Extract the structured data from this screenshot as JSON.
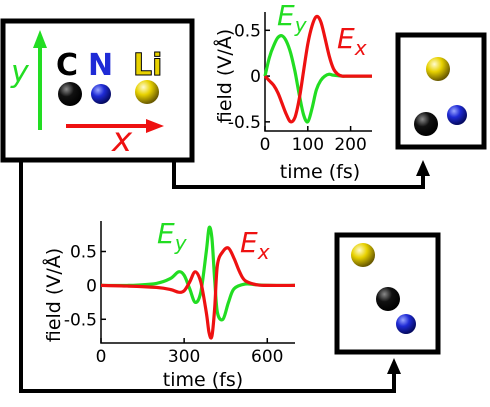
{
  "colors": {
    "green": "#22dd22",
    "red": "#ee1111",
    "black": "#000000",
    "carbon": "#111111",
    "nitrogen": "#1f2bd6",
    "lithium": "#e8d200"
  },
  "legend": {
    "y_label": "y",
    "x_label": "x",
    "atoms": [
      "C",
      "N",
      "Li"
    ]
  },
  "chart_data": [
    {
      "type": "line",
      "id": "top",
      "xlabel": "time (fs)",
      "ylabel": "field (V/Å)",
      "xlim": [
        0,
        250
      ],
      "ylim": [
        -0.6,
        0.7
      ],
      "xticks": [
        0,
        100,
        200
      ],
      "yticks": [
        0.5,
        0,
        -0.5
      ],
      "ytick_labels": [
        "0.5",
        "0",
        "-0.5"
      ],
      "series": [
        {
          "name": "Ey",
          "color": "#22dd22",
          "x": [
            0,
            10,
            20,
            30,
            40,
            50,
            60,
            70,
            80,
            90,
            100,
            110,
            120,
            130,
            140,
            150,
            160,
            180,
            200,
            250
          ],
          "y": [
            0,
            0.2,
            0.33,
            0.42,
            0.44,
            0.38,
            0.25,
            0.05,
            -0.2,
            -0.42,
            -0.5,
            -0.35,
            -0.15,
            -0.05,
            0,
            0.02,
            0.01,
            0,
            0,
            0
          ]
        },
        {
          "name": "Ex",
          "color": "#ee1111",
          "x": [
            0,
            10,
            20,
            30,
            40,
            50,
            60,
            70,
            80,
            90,
            100,
            110,
            120,
            130,
            140,
            150,
            160,
            170,
            180,
            190,
            200,
            220,
            250
          ],
          "y": [
            0,
            -0.05,
            -0.1,
            -0.18,
            -0.3,
            -0.42,
            -0.5,
            -0.45,
            -0.25,
            0.05,
            0.35,
            0.55,
            0.65,
            0.6,
            0.42,
            0.22,
            0.08,
            0.02,
            0,
            0,
            0,
            0,
            0
          ]
        }
      ],
      "legend_labels": [
        "Ey",
        "Ex"
      ]
    },
    {
      "type": "line",
      "id": "bottom",
      "xlabel": "time (fs)",
      "ylabel": "field (V/Å)",
      "xlim": [
        0,
        700
      ],
      "ylim": [
        -0.85,
        0.95
      ],
      "xticks": [
        0,
        300,
        600
      ],
      "yticks": [
        0.5,
        0,
        -0.5
      ],
      "ytick_labels": [
        "0.5",
        "0",
        "-0.5"
      ],
      "series": [
        {
          "name": "Ey",
          "color": "#22dd22",
          "x": [
            0,
            100,
            200,
            250,
            280,
            300,
            320,
            340,
            360,
            380,
            390,
            400,
            410,
            420,
            440,
            460,
            480,
            520,
            560,
            600,
            700
          ],
          "y": [
            0,
            0,
            0.03,
            0.1,
            0.2,
            0.15,
            -0.05,
            -0.25,
            -0.1,
            0.5,
            0.85,
            0.7,
            0.1,
            -0.4,
            -0.5,
            -0.25,
            -0.05,
            0.02,
            0.01,
            0,
            0
          ]
        },
        {
          "name": "Ex",
          "color": "#ee1111",
          "x": [
            0,
            100,
            200,
            250,
            280,
            300,
            320,
            340,
            360,
            380,
            390,
            400,
            410,
            420,
            440,
            460,
            480,
            500,
            520,
            560,
            600,
            700
          ],
          "y": [
            0,
            -0.01,
            -0.03,
            -0.06,
            -0.1,
            -0.08,
            0.05,
            0.2,
            0.05,
            -0.4,
            -0.7,
            -0.75,
            -0.35,
            0.3,
            0.5,
            0.55,
            0.4,
            0.2,
            0.07,
            0.01,
            0,
            0
          ]
        }
      ],
      "legend_labels": [
        "Ey",
        "Ex"
      ]
    }
  ]
}
